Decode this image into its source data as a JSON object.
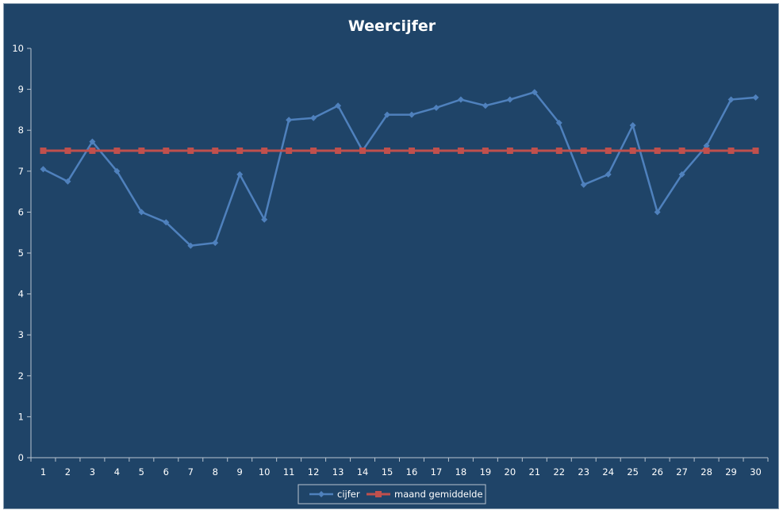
{
  "chart_data": {
    "type": "line",
    "title": "Weercijfer",
    "xlabel": "",
    "ylabel": "",
    "ylim": [
      0,
      10
    ],
    "y_ticks": [
      0,
      1,
      2,
      3,
      4,
      5,
      6,
      7,
      8,
      9,
      10
    ],
    "categories": [
      "1",
      "2",
      "3",
      "4",
      "5",
      "6",
      "7",
      "8",
      "9",
      "10",
      "11",
      "12",
      "13",
      "14",
      "15",
      "16",
      "17",
      "18",
      "19",
      "20",
      "21",
      "22",
      "23",
      "24",
      "25",
      "26",
      "27",
      "28",
      "29",
      "30"
    ],
    "grid": false,
    "legend_position": "bottom",
    "series": [
      {
        "name": "cijfer",
        "color": "#4f81bd",
        "marker": "diamond",
        "values": [
          7.05,
          6.75,
          7.72,
          7.0,
          6.0,
          5.75,
          5.18,
          5.25,
          6.92,
          5.82,
          8.25,
          8.3,
          8.6,
          7.5,
          8.38,
          8.38,
          8.55,
          8.75,
          8.6,
          8.75,
          8.93,
          8.18,
          6.67,
          6.92,
          8.12,
          6.0,
          6.92,
          7.62,
          8.75,
          8.8
        ]
      },
      {
        "name": "maand gemiddelde",
        "color": "#c0504d",
        "marker": "square",
        "values": [
          7.5,
          7.5,
          7.5,
          7.5,
          7.5,
          7.5,
          7.5,
          7.5,
          7.5,
          7.5,
          7.5,
          7.5,
          7.5,
          7.5,
          7.5,
          7.5,
          7.5,
          7.5,
          7.5,
          7.5,
          7.5,
          7.5,
          7.5,
          7.5,
          7.5,
          7.5,
          7.5,
          7.5,
          7.5,
          7.5
        ]
      }
    ],
    "colors": {
      "background": "#1f4468",
      "axis": "#b8c4d0",
      "text": "#ffffff"
    }
  }
}
